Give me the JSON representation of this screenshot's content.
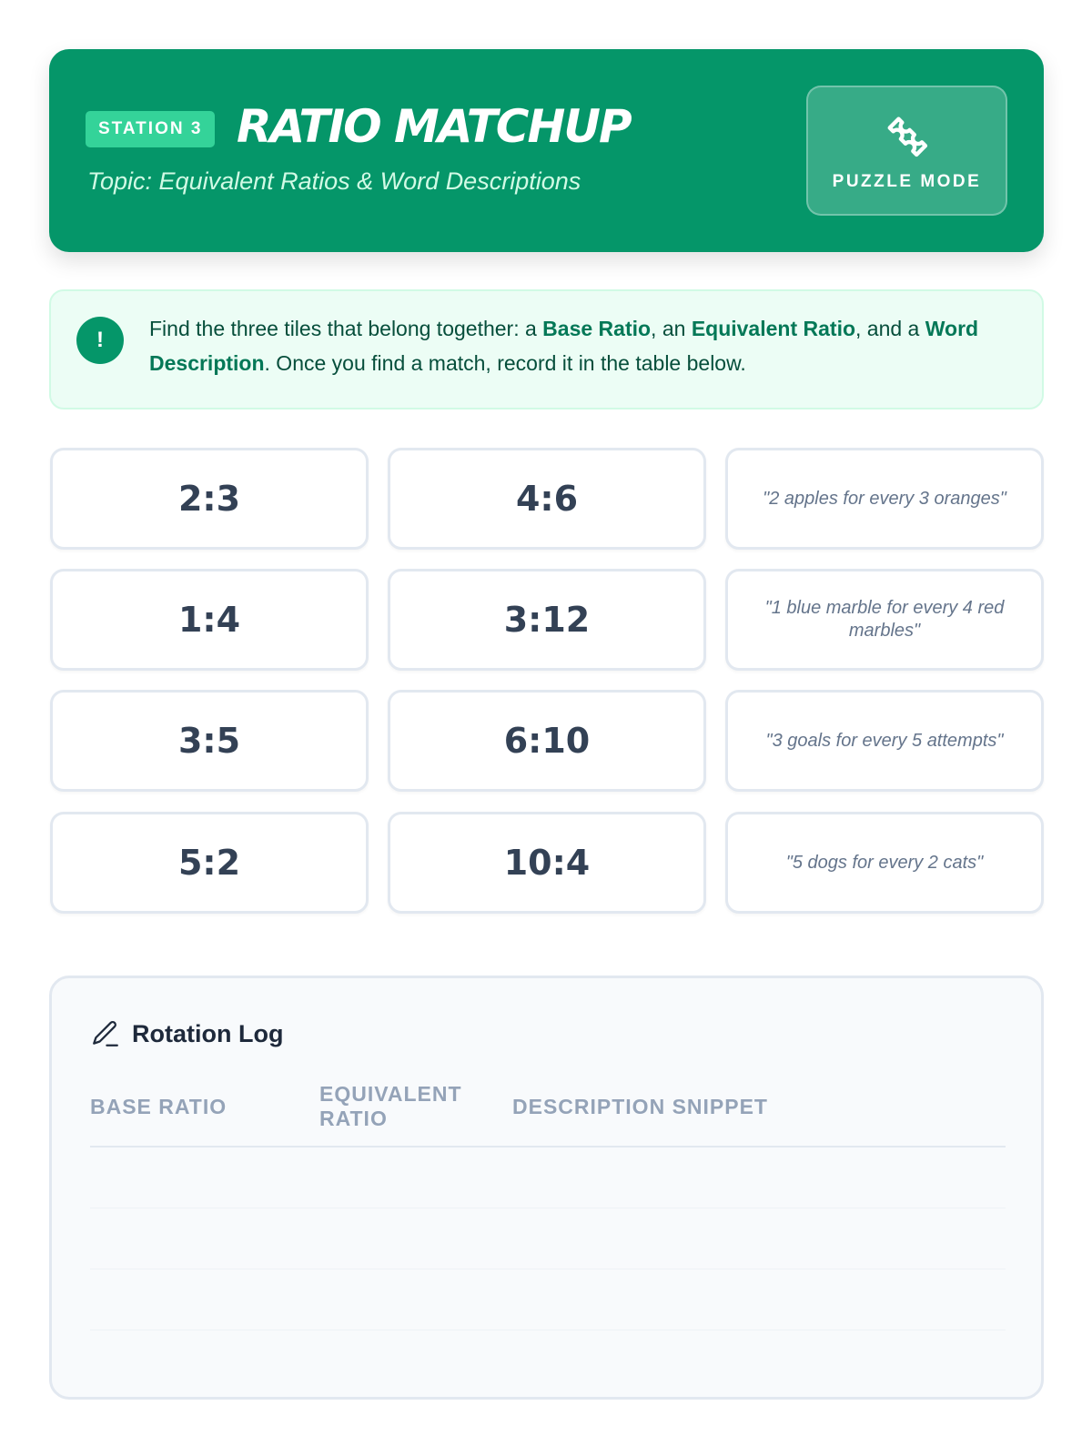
{
  "header": {
    "station": "STATION 3",
    "title": "RATIO MATCHUP",
    "subtitle": "Topic: Equivalent Ratios & Word Descriptions",
    "mode_icon": "puzzle-icon",
    "mode_label": "PUZZLE MODE"
  },
  "instructions": {
    "icon": "exclamation-icon",
    "t1": "Find the three tiles that belong together: a ",
    "b1": "Base Ratio",
    "t2": ", an ",
    "b2": "Equivalent Ratio",
    "t3": ", and a ",
    "b3": "Word Description",
    "t4": ". Once you find a match, record it in the table below."
  },
  "tiles": [
    [
      "2:3",
      "4:6",
      "\"2 apples for every 3 oranges\""
    ],
    [
      "1:4",
      "3:12",
      "\"1 blue marble for every 4 red marbles\""
    ],
    [
      "3:5",
      "6:10",
      "\"3 goals for every 5 attempts\""
    ],
    [
      "5:2",
      "10:4",
      "\"5 dogs for every 2 cats\""
    ]
  ],
  "log": {
    "icon": "pencil-icon",
    "title": "Rotation Log",
    "columns": [
      "BASE RATIO",
      "EQUIVALENT RATIO",
      "DESCRIPTION SNIPPET"
    ]
  },
  "colors": {
    "brand": "#059669",
    "accent": "#34d399"
  }
}
